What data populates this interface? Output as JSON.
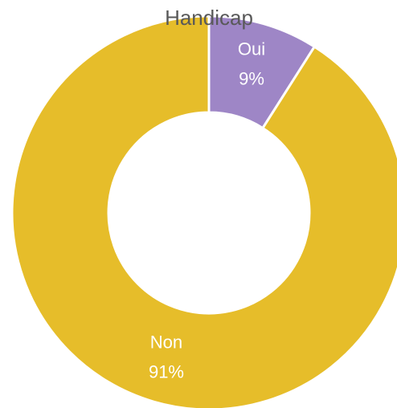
{
  "chart_data": {
    "type": "donut",
    "title": "Handicap",
    "categories": [
      "Oui",
      "Non"
    ],
    "values": [
      9,
      91
    ],
    "value_labels": [
      "9%",
      "91%"
    ],
    "colors": [
      "#9e86c6",
      "#e6bd2a"
    ]
  }
}
